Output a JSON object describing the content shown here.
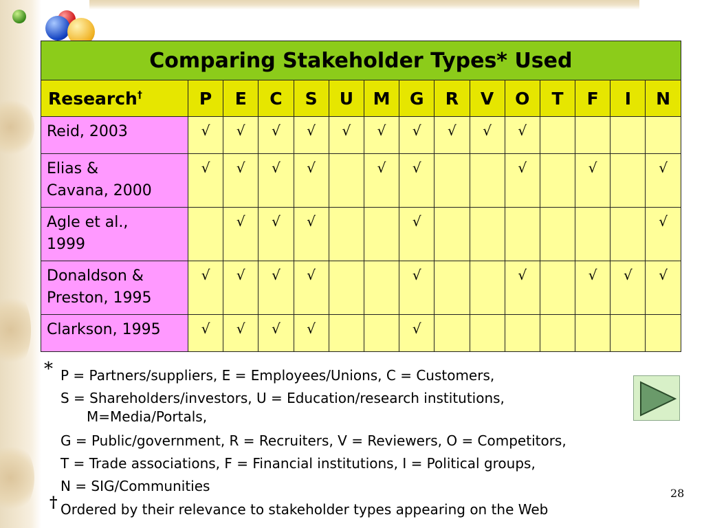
{
  "slide": {
    "title": "Comparing Stakeholder Types* Used",
    "page_number": "28"
  },
  "table": {
    "header_research": "Research",
    "header_research_sup": "†",
    "columns": [
      "P",
      "E",
      "C",
      "S",
      "U",
      "M",
      "G",
      "R",
      "V",
      "O",
      "T",
      "F",
      "I",
      "N"
    ],
    "check_symbol": "√",
    "rows": [
      {
        "line1": "Reid, 2003",
        "line2": "",
        "marks": [
          1,
          1,
          1,
          1,
          1,
          1,
          1,
          1,
          1,
          1,
          0,
          0,
          0,
          0
        ]
      },
      {
        "line1": "Elias &",
        "line2": "Cavana, 2000",
        "marks": [
          1,
          1,
          1,
          1,
          0,
          1,
          1,
          0,
          0,
          1,
          0,
          1,
          0,
          1
        ]
      },
      {
        "line1": "Agle et al.,",
        "line2": "1999",
        "marks": [
          0,
          1,
          1,
          1,
          0,
          0,
          1,
          0,
          0,
          0,
          0,
          0,
          0,
          1
        ]
      },
      {
        "line1": "Donaldson &",
        "line2": "Preston, 1995",
        "marks": [
          1,
          1,
          1,
          1,
          0,
          0,
          1,
          0,
          0,
          1,
          0,
          1,
          1,
          1
        ]
      },
      {
        "line1": "Clarkson, 1995",
        "line2": "",
        "marks": [
          1,
          1,
          1,
          1,
          0,
          0,
          1,
          0,
          0,
          0,
          0,
          0,
          0,
          0
        ]
      }
    ]
  },
  "footnotes": {
    "asterisk": "*",
    "dagger": "†",
    "line1": "P = Partners/suppliers, E = Employees/Unions, C = Customers,",
    "line2": "S = Shareholders/investors, U = Education/research institutions,",
    "line2b": "M=Media/Portals,",
    "line3": "G = Public/government, R = Recruiters, V = Reviewers, O = Competitors,",
    "line4": "T = Trade associations, F = Financial institutions, I = Political groups,",
    "line5": "N = SIG/Communities",
    "line6": "Ordered by their relevance to stakeholder types appearing on the Web"
  },
  "icons": {
    "logo": "colored-balls-logo",
    "next": "play-triangle-icon"
  },
  "colors": {
    "title_bg": "#8ccc1a",
    "header_bg": "#e6e600",
    "research_bg": "#ff99ff",
    "cell_bg": "#ffff99"
  }
}
